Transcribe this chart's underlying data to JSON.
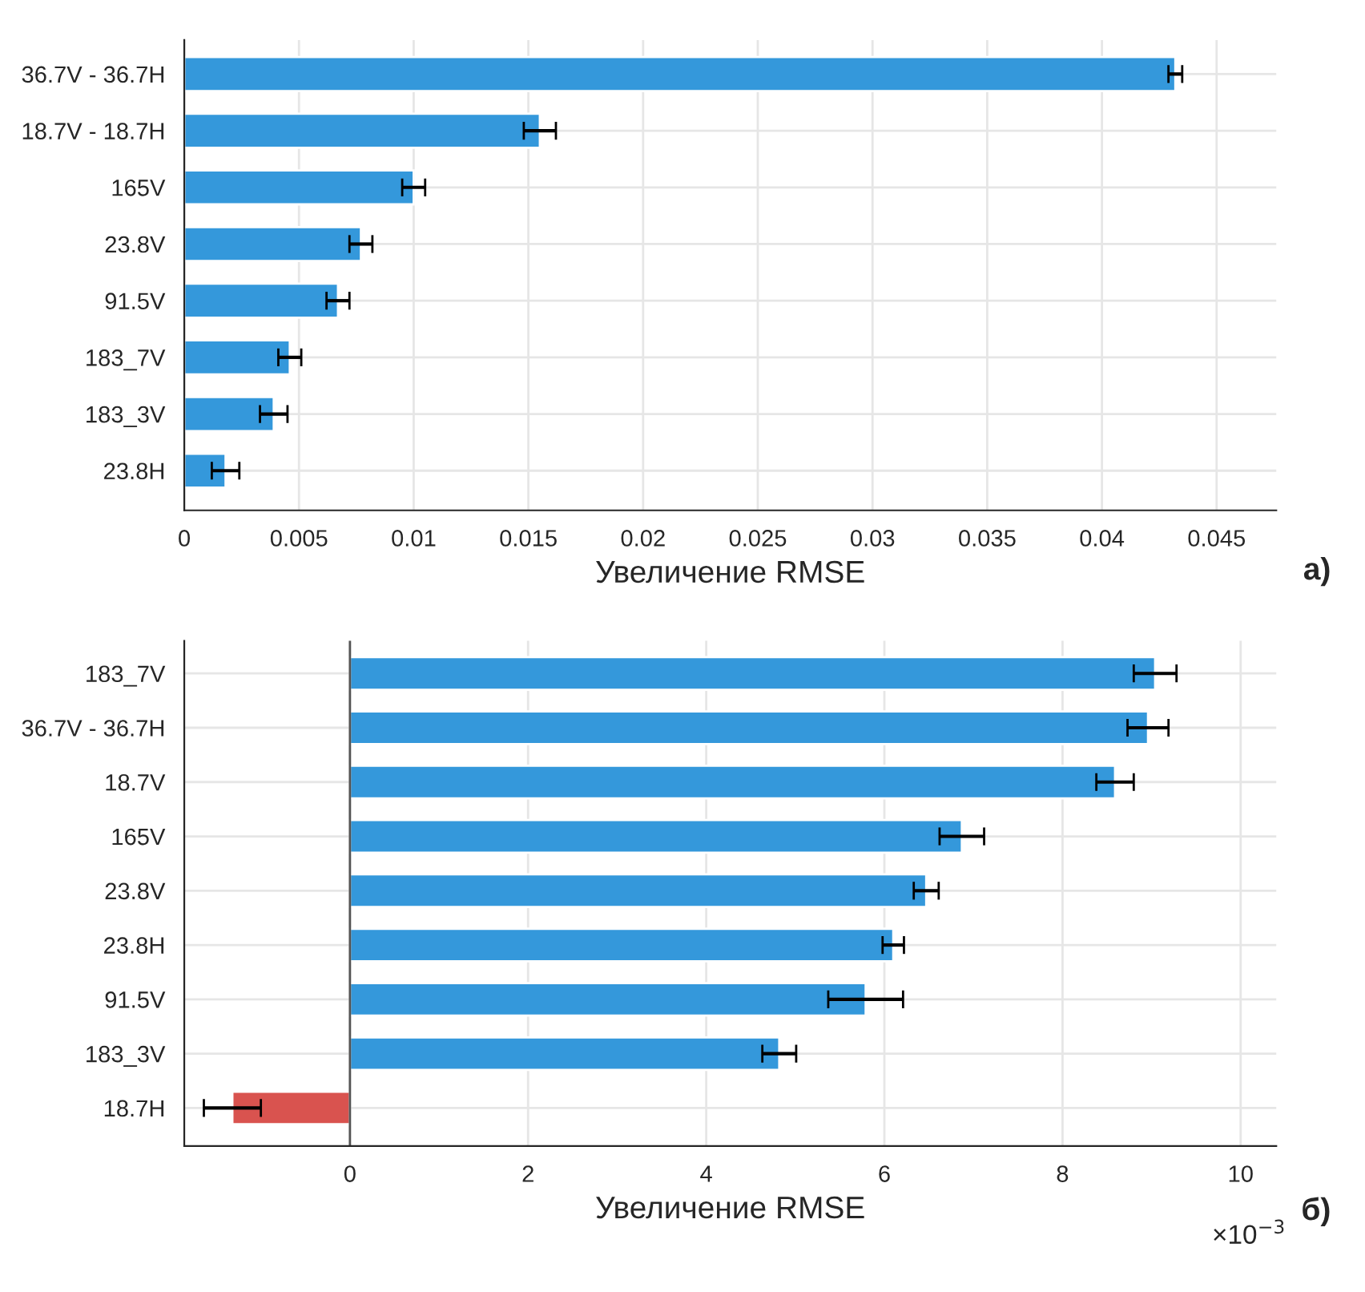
{
  "chart_data": [
    {
      "type": "bar",
      "orientation": "horizontal",
      "xlabel": "Увеличение RMSE",
      "categories": [
        "36.7V - 36.7H",
        "18.7V - 18.7H",
        "165V",
        "23.8V",
        "91.5V",
        "183_7V",
        "183_3V",
        "23.8H"
      ],
      "values": [
        0.0432,
        0.0155,
        0.01,
        0.0077,
        0.0067,
        0.0046,
        0.0039,
        0.0018
      ],
      "errors": [
        0.0003,
        0.0007,
        0.0005,
        0.0005,
        0.0005,
        0.0005,
        0.0006,
        0.0006
      ],
      "colors": [
        "#3498db",
        "#3498db",
        "#3498db",
        "#3498db",
        "#3498db",
        "#3498db",
        "#3498db",
        "#3498db"
      ],
      "xlim": [
        0,
        0.0476
      ],
      "xticks": [
        0,
        0.005,
        0.01,
        0.015,
        0.02,
        0.025,
        0.03,
        0.035,
        0.04,
        0.045
      ],
      "grid": true,
      "annotations": [
        "а)"
      ]
    },
    {
      "type": "bar",
      "orientation": "horizontal",
      "xlabel": "Увеличение RMSE",
      "categories": [
        "183_7V",
        "36.7V - 36.7H",
        "18.7V",
        "165V",
        "23.8V",
        "23.8H",
        "91.5V",
        "183_3V",
        "18.7H"
      ],
      "values": [
        9.04,
        8.96,
        8.59,
        6.87,
        6.47,
        6.1,
        5.79,
        4.82,
        -1.32
      ],
      "errors": [
        0.24,
        0.23,
        0.21,
        0.25,
        0.14,
        0.12,
        0.42,
        0.19,
        0.32
      ],
      "colors": [
        "#3498db",
        "#3498db",
        "#3498db",
        "#3498db",
        "#3498db",
        "#3498db",
        "#3498db",
        "#3498db",
        "#d9534f"
      ],
      "xlim": [
        -1.86,
        10.4
      ],
      "xticks": [
        0,
        2,
        4,
        6,
        8,
        10
      ],
      "ref_lines": [
        {
          "axis": "x",
          "value": 0,
          "color": "#555555"
        }
      ],
      "grid": true,
      "annotations": [
        "×10$^{−3}$",
        "б)"
      ]
    }
  ]
}
